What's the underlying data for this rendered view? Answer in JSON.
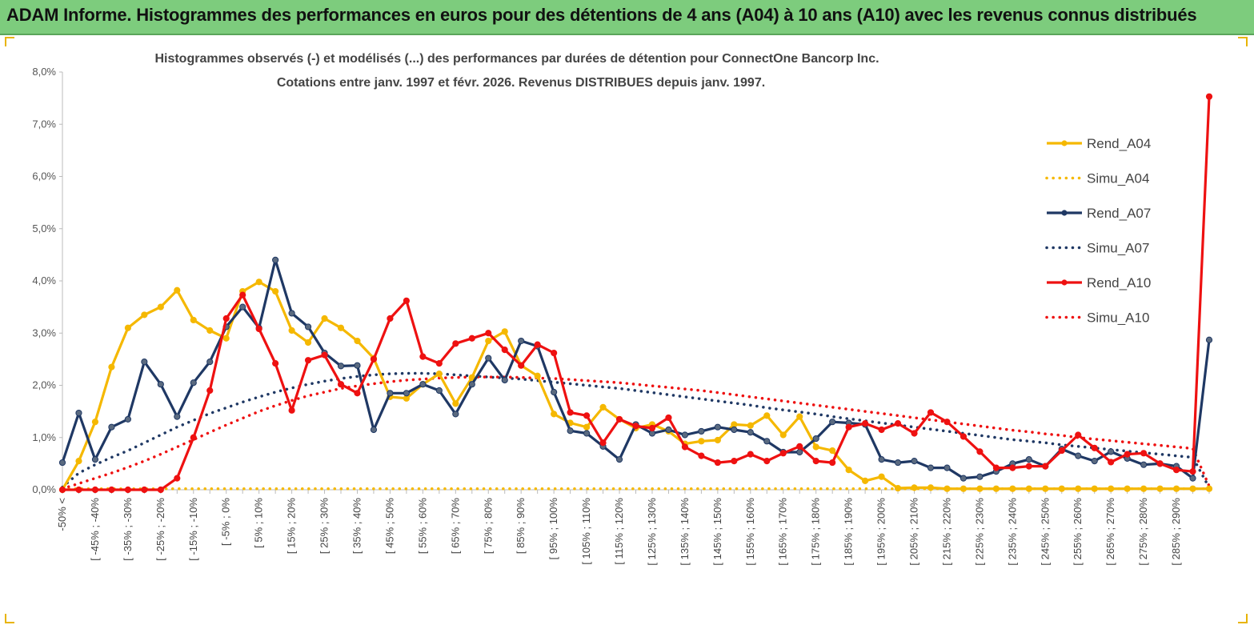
{
  "header": {
    "title": "ADAM Informe. Histogrammes des performances en euros pour des détentions de 4 ans (A04) à 10 ans (A10) avec les revenus connus distribués"
  },
  "colors": {
    "banner": "#7dcc7d",
    "a04": "#f5b800",
    "a07": "#1f3864",
    "a10": "#ee1111"
  },
  "chart_data": {
    "type": "line",
    "title": "Histogrammes observés (-)  et modélisés (...) des performances par durées de détention pour ConnectOne Bancorp Inc.",
    "subtitle": "Cotations entre janv. 1997 et févr. 2026. Revenus DISTRIBUES depuis janv. 1997.",
    "xlabel": "",
    "ylabel": "",
    "ylim": [
      0,
      8
    ],
    "yticks": [
      "0,0%",
      "1,0%",
      "2,0%",
      "3,0%",
      "4,0%",
      "5,0%",
      "6,0%",
      "7,0%",
      "8,0%"
    ],
    "categories": [
      "-50% <",
      "[ -50% ; -45%[",
      "[ -45% ; -40%[",
      "[ -40% ; -35%[",
      "[ -35% ; -30%[",
      "[ -30% ; -25%[",
      "[ -25% ; -20%[",
      "[ -20% ; -15%[",
      "[ -15% ; -10%[",
      "[ -10% ; -5%[",
      "[ -5% ; 0%[",
      "[ 0% ; 5%[",
      "[ 5% ; 10%[",
      "[ 10% ; 15%[",
      "[ 15% ; 20%[",
      "[ 20% ; 25%[",
      "[ 25% ; 30%[",
      "[ 30% ; 35%[",
      "[ 35% ; 40%[",
      "[ 40% ; 45%[",
      "[ 45% ; 50%[",
      "[ 50% ; 55%[",
      "[ 55% ; 60%[",
      "[ 60% ; 65%[",
      "[ 65% ; 70%[",
      "[ 70% ; 75%[",
      "[ 75% ; 80%[",
      "[ 80% ; 85%[",
      "[ 85% ; 90%[",
      "[ 90% ; 95%[",
      "[ 95% ; 100%[",
      "[ 100% ; 105%[",
      "[ 105% ; 110%[",
      "[ 110% ; 115%[",
      "[ 115% ; 120%[",
      "[ 120% ; 125%[",
      "[ 125% ; 130%[",
      "[ 130% ; 135%[",
      "[ 135% ; 140%[",
      "[ 140% ; 145%[",
      "[ 145% ; 150%[",
      "[ 150% ; 155%[",
      "[ 155% ; 160%[",
      "[ 160% ; 165%[",
      "[ 165% ; 170%[",
      "[ 170% ; 175%[",
      "[ 175% ; 180%[",
      "[ 180% ; 185%[",
      "[ 185% ; 190%[",
      "[ 190% ; 195%[",
      "[ 195% ; 200%[",
      "[ 200% ; 205%[",
      "[ 205% ; 210%[",
      "[ 210% ; 215%[",
      "[ 215% ; 220%[",
      "[ 220% ; 225%[",
      "[ 225% ; 230%[",
      "[ 230% ; 235%[",
      "[ 235% ; 240%[",
      "[ 240% ; 245%[",
      "[ 245% ; 250%[",
      "[ 250% ; 255%[",
      "[ 255% ; 260%[",
      "[ 260% ; 265%[",
      "[ 265% ; 270%[",
      "[ 270% ; 275%[",
      "[ 275% ; 280%[",
      "[ 280% ; 285%[",
      "[ 285% ; 290%[",
      "[ 290% ; 295%[",
      "> 295%"
    ],
    "tick_labels": [
      "-50% <",
      "[ -45% ; -40%",
      "[ -35% ; -30%",
      "[ -25% ; -20%",
      "[ -15% ; -10%",
      "[ -5% ; 0%",
      "[ 5% ; 10%",
      "[ 15% ; 20%",
      "[ 25% ; 30%",
      "[ 35% ; 40%",
      "[ 45% ; 50%",
      "[ 55% ; 60%",
      "[ 65% ; 70%",
      "[ 75% ; 80%",
      "[ 85% ; 90%",
      "[ 95% ; 100%",
      "[ 105% ; 110%",
      "[ 115% ; 120%",
      "[ 125% ; 130%",
      "[ 135% ; 140%",
      "[ 145% ; 150%",
      "[ 155% ; 160%",
      "[ 165% ; 170%",
      "[ 175% ; 180%",
      "[ 185% ; 190%",
      "[ 195% ; 200%",
      "[ 205% ; 210%",
      "[ 215% ; 220%",
      "[ 225% ; 230%",
      "[ 235% ; 240%",
      "[ 245% ; 250%",
      "[ 255% ; 260%",
      "[ 265% ; 270%",
      "[ 275% ; 280%",
      "[ 285% ; 290%"
    ],
    "legend_position": "right",
    "series": [
      {
        "name": "Rend_A04",
        "style": "solid",
        "color": "#f5b800",
        "values": [
          0.0,
          0.55,
          1.3,
          2.35,
          3.1,
          3.35,
          3.5,
          3.82,
          3.25,
          3.05,
          2.9,
          3.8,
          3.98,
          3.8,
          3.05,
          2.82,
          3.28,
          3.1,
          2.85,
          2.52,
          1.78,
          1.75,
          2.02,
          2.22,
          1.65,
          2.15,
          2.85,
          3.03,
          2.38,
          2.18,
          1.45,
          1.28,
          1.2,
          1.58,
          1.35,
          1.18,
          1.25,
          1.12,
          0.88,
          0.93,
          0.95,
          1.25,
          1.23,
          1.42,
          1.05,
          1.4,
          0.82,
          0.75,
          0.38,
          0.17,
          0.25,
          0.03,
          0.04,
          0.04,
          0.02,
          0.02,
          0.02,
          0.02,
          0.02,
          0.02,
          0.02,
          0.02,
          0.02,
          0.02,
          0.02,
          0.02,
          0.02,
          0.02,
          0.02,
          0.02,
          0.02
        ]
      },
      {
        "name": "Simu_A04",
        "style": "dotted",
        "color": "#f5b800",
        "values": [
          0.02,
          0.02,
          0.02,
          0.02,
          0.02,
          0.02,
          0.02,
          0.02,
          0.02,
          0.02,
          0.02,
          0.02,
          0.02,
          0.02,
          0.02,
          0.02,
          0.02,
          0.02,
          0.02,
          0.02,
          0.02,
          0.02,
          0.02,
          0.02,
          0.02,
          0.02,
          0.02,
          0.02,
          0.02,
          0.02,
          0.02,
          0.02,
          0.02,
          0.02,
          0.02,
          0.02,
          0.02,
          0.02,
          0.02,
          0.02,
          0.02,
          0.02,
          0.02,
          0.02,
          0.02,
          0.02,
          0.02,
          0.02,
          0.02,
          0.02,
          0.02,
          0.02,
          0.02,
          0.02,
          0.02,
          0.02,
          0.02,
          0.02,
          0.02,
          0.02,
          0.02,
          0.02,
          0.02,
          0.02,
          0.02,
          0.02,
          0.02,
          0.02,
          0.02,
          0.02,
          0.02
        ]
      },
      {
        "name": "Rend_A07",
        "style": "solid",
        "color": "#1f3864",
        "values": [
          0.52,
          1.47,
          0.58,
          1.2,
          1.35,
          2.45,
          2.02,
          1.4,
          2.05,
          2.45,
          3.12,
          3.5,
          3.1,
          4.4,
          3.38,
          3.12,
          2.62,
          2.37,
          2.38,
          1.15,
          1.85,
          1.85,
          2.02,
          1.9,
          1.45,
          2.02,
          2.52,
          2.1,
          2.85,
          2.75,
          1.87,
          1.13,
          1.08,
          0.83,
          0.58,
          1.25,
          1.08,
          1.15,
          1.05,
          1.12,
          1.2,
          1.15,
          1.1,
          0.93,
          0.72,
          0.72,
          0.98,
          1.3,
          1.28,
          1.25,
          0.58,
          0.52,
          0.55,
          0.42,
          0.42,
          0.22,
          0.25,
          0.35,
          0.5,
          0.58,
          0.45,
          0.78,
          0.65,
          0.55,
          0.73,
          0.6,
          0.48,
          0.5,
          0.45,
          0.22,
          2.87
        ]
      },
      {
        "name": "Simu_A07",
        "style": "dotted",
        "color": "#1f3864",
        "values": [
          0.05,
          0.32,
          0.48,
          0.62,
          0.75,
          0.9,
          1.05,
          1.2,
          1.33,
          1.46,
          1.57,
          1.68,
          1.78,
          1.87,
          1.95,
          2.02,
          2.08,
          2.13,
          2.17,
          2.2,
          2.22,
          2.23,
          2.23,
          2.22,
          2.2,
          2.18,
          2.16,
          2.14,
          2.12,
          2.09,
          2.06,
          2.03,
          2.0,
          1.97,
          1.94,
          1.9,
          1.86,
          1.82,
          1.78,
          1.74,
          1.7,
          1.66,
          1.62,
          1.57,
          1.53,
          1.49,
          1.45,
          1.4,
          1.36,
          1.32,
          1.28,
          1.24,
          1.2,
          1.16,
          1.12,
          1.08,
          1.04,
          1.0,
          0.96,
          0.93,
          0.9,
          0.86,
          0.83,
          0.8,
          0.77,
          0.74,
          0.71,
          0.68,
          0.65,
          0.62,
          0.04
        ]
      },
      {
        "name": "Rend_A10",
        "style": "solid",
        "color": "#ee1111",
        "values": [
          0.0,
          0.0,
          0.0,
          0.0,
          0.0,
          0.0,
          0.0,
          0.22,
          1.0,
          1.9,
          3.28,
          3.73,
          3.08,
          2.42,
          1.52,
          2.48,
          2.58,
          2.02,
          1.85,
          2.5,
          3.28,
          3.62,
          2.55,
          2.42,
          2.8,
          2.9,
          3.0,
          2.68,
          2.38,
          2.78,
          2.62,
          1.48,
          1.42,
          0.9,
          1.35,
          1.22,
          1.18,
          1.38,
          0.82,
          0.65,
          0.52,
          0.55,
          0.68,
          0.55,
          0.7,
          0.83,
          0.55,
          0.52,
          1.2,
          1.27,
          1.15,
          1.27,
          1.08,
          1.48,
          1.3,
          1.02,
          0.73,
          0.42,
          0.42,
          0.45,
          0.45,
          0.75,
          1.05,
          0.8,
          0.53,
          0.68,
          0.7,
          0.5,
          0.38,
          0.35,
          7.53
        ]
      },
      {
        "name": "Simu_A10",
        "style": "dotted",
        "color": "#ee1111",
        "values": [
          0.02,
          0.12,
          0.22,
          0.32,
          0.43,
          0.55,
          0.68,
          0.82,
          0.96,
          1.1,
          1.24,
          1.37,
          1.5,
          1.61,
          1.71,
          1.8,
          1.87,
          1.94,
          1.99,
          2.03,
          2.07,
          2.1,
          2.12,
          2.14,
          2.15,
          2.16,
          2.16,
          2.16,
          2.15,
          2.14,
          2.13,
          2.11,
          2.09,
          2.07,
          2.05,
          2.02,
          1.99,
          1.96,
          1.93,
          1.9,
          1.86,
          1.82,
          1.78,
          1.74,
          1.7,
          1.66,
          1.62,
          1.58,
          1.54,
          1.5,
          1.46,
          1.42,
          1.38,
          1.34,
          1.3,
          1.26,
          1.22,
          1.18,
          1.14,
          1.11,
          1.07,
          1.04,
          1.0,
          0.97,
          0.94,
          0.91,
          0.88,
          0.85,
          0.82,
          0.79,
          0.07
        ]
      }
    ]
  }
}
